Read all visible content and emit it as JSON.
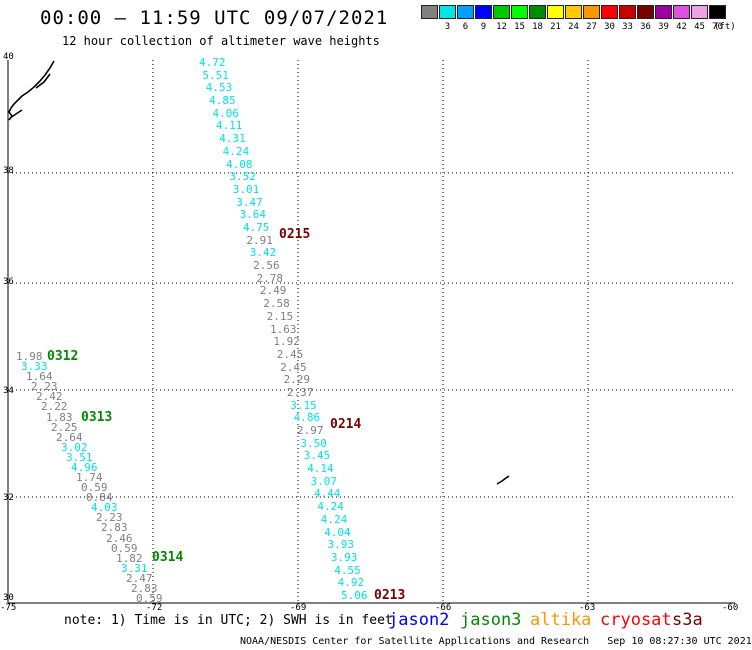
{
  "header": {
    "title": "00:00 – 11:59 UTC 09/07/2021",
    "subtitle": "12 hour collection of altimeter wave heights"
  },
  "colorbar": {
    "colors": [
      "#808080",
      "#00e5e5",
      "#00a0ff",
      "#0000ff",
      "#00c800",
      "#00ff00",
      "#008c00",
      "#ffff00",
      "#ffc800",
      "#ff9600",
      "#ff0000",
      "#c80000",
      "#780000",
      "#a000a0",
      "#e050e0",
      "#f0a0e6",
      "#000000"
    ],
    "labels": [
      "",
      "3",
      "6",
      "9",
      "12",
      "15",
      "18",
      "21",
      "24",
      "27",
      "30",
      "33",
      "36",
      "39",
      "42",
      "45",
      "70"
    ],
    "unit": "(ft)"
  },
  "axes": {
    "lat_labels": [
      "40",
      "38",
      "36",
      "34",
      "32",
      "30"
    ],
    "lon_labels": [
      "-75",
      "-72",
      "-69",
      "-66",
      "-63",
      "-60"
    ]
  },
  "passes": [
    {
      "label": "0215",
      "color": "#780000"
    },
    {
      "label": "0214",
      "color": "#780000"
    },
    {
      "label": "0213",
      "color": "#780000"
    },
    {
      "label": "0312",
      "color": "#008c00"
    },
    {
      "label": "0313",
      "color": "#008c00"
    },
    {
      "label": "0314",
      "color": "#008c00"
    }
  ],
  "track_east": {
    "values": [
      "4.72",
      "5.51",
      "4.53",
      "4.85",
      "4.06",
      "4.11",
      "4.31",
      "4.24",
      "4.08",
      "3.52",
      "3.01",
      "3.47",
      "3.64",
      "4.75",
      "2.91",
      "3.42",
      "2.56",
      "2.78",
      "2.49",
      "2.58",
      "2.15",
      "1.63",
      "1.92",
      "2.45",
      "2.45",
      "2.29",
      "2.37",
      "3.15",
      "4.86",
      "2.97",
      "3.50",
      "3.45",
      "4.14",
      "3.07",
      "4.44",
      "4.24",
      "4.24",
      "4.04",
      "3.93",
      "3.93",
      "4.55",
      "4.92",
      "5.06"
    ],
    "colors": [
      "#00e5e5",
      "#00e5e5",
      "#00e5e5",
      "#00e5e5",
      "#00e5e5",
      "#00e5e5",
      "#00e5e5",
      "#00e5e5",
      "#00e5e5",
      "#00e5e5",
      "#00e5e5",
      "#00e5e5",
      "#00e5e5",
      "#00e5e5",
      "#808080",
      "#00e5e5",
      "#808080",
      "#808080",
      "#808080",
      "#808080",
      "#808080",
      "#808080",
      "#808080",
      "#808080",
      "#808080",
      "#808080",
      "#808080",
      "#00e5e5",
      "#00e5e5",
      "#808080",
      "#00e5e5",
      "#00e5e5",
      "#00e5e5",
      "#00e5e5",
      "#00e5e5",
      "#00e5e5",
      "#00e5e5",
      "#00e5e5",
      "#00e5e5",
      "#00e5e5",
      "#00e5e5",
      "#00e5e5",
      "#00e5e5"
    ]
  },
  "track_west": {
    "values": [
      "1.98",
      "3.33",
      "1.64",
      "2.23",
      "2.42",
      "2.22",
      "1.83",
      "2.25",
      "2.64",
      "3.02",
      "3.51",
      "4.96",
      "1.74",
      "0.59",
      "0.84",
      "4.03",
      "2.23",
      "2.83",
      "2.46",
      "0.59",
      "1.82",
      "3.31",
      "2.47",
      "2.83",
      "0.59"
    ],
    "colors": [
      "#808080",
      "#00e5e5",
      "#808080",
      "#808080",
      "#808080",
      "#808080",
      "#808080",
      "#808080",
      "#808080",
      "#00e5e5",
      "#00e5e5",
      "#00e5e5",
      "#808080",
      "#808080",
      "#808080",
      "#00e5e5",
      "#808080",
      "#808080",
      "#808080",
      "#808080",
      "#808080",
      "#00e5e5",
      "#808080",
      "#808080",
      "#808080"
    ]
  },
  "note": "note: 1) Time is in UTC; 2) SWH is in feet",
  "satellites": [
    {
      "name": "jason2",
      "color": "#0000ff"
    },
    {
      "name": "jason3",
      "color": "#008c00"
    },
    {
      "name": "altika",
      "color": "#ff9600"
    },
    {
      "name": "cryosat",
      "color": "#ff0000"
    },
    {
      "name": "s3a",
      "color": "#780000"
    }
  ],
  "footer": "NOAA/NESDIS Center for Satellite Applications and Research   Sep 10 08:27:30 UTC 2021"
}
